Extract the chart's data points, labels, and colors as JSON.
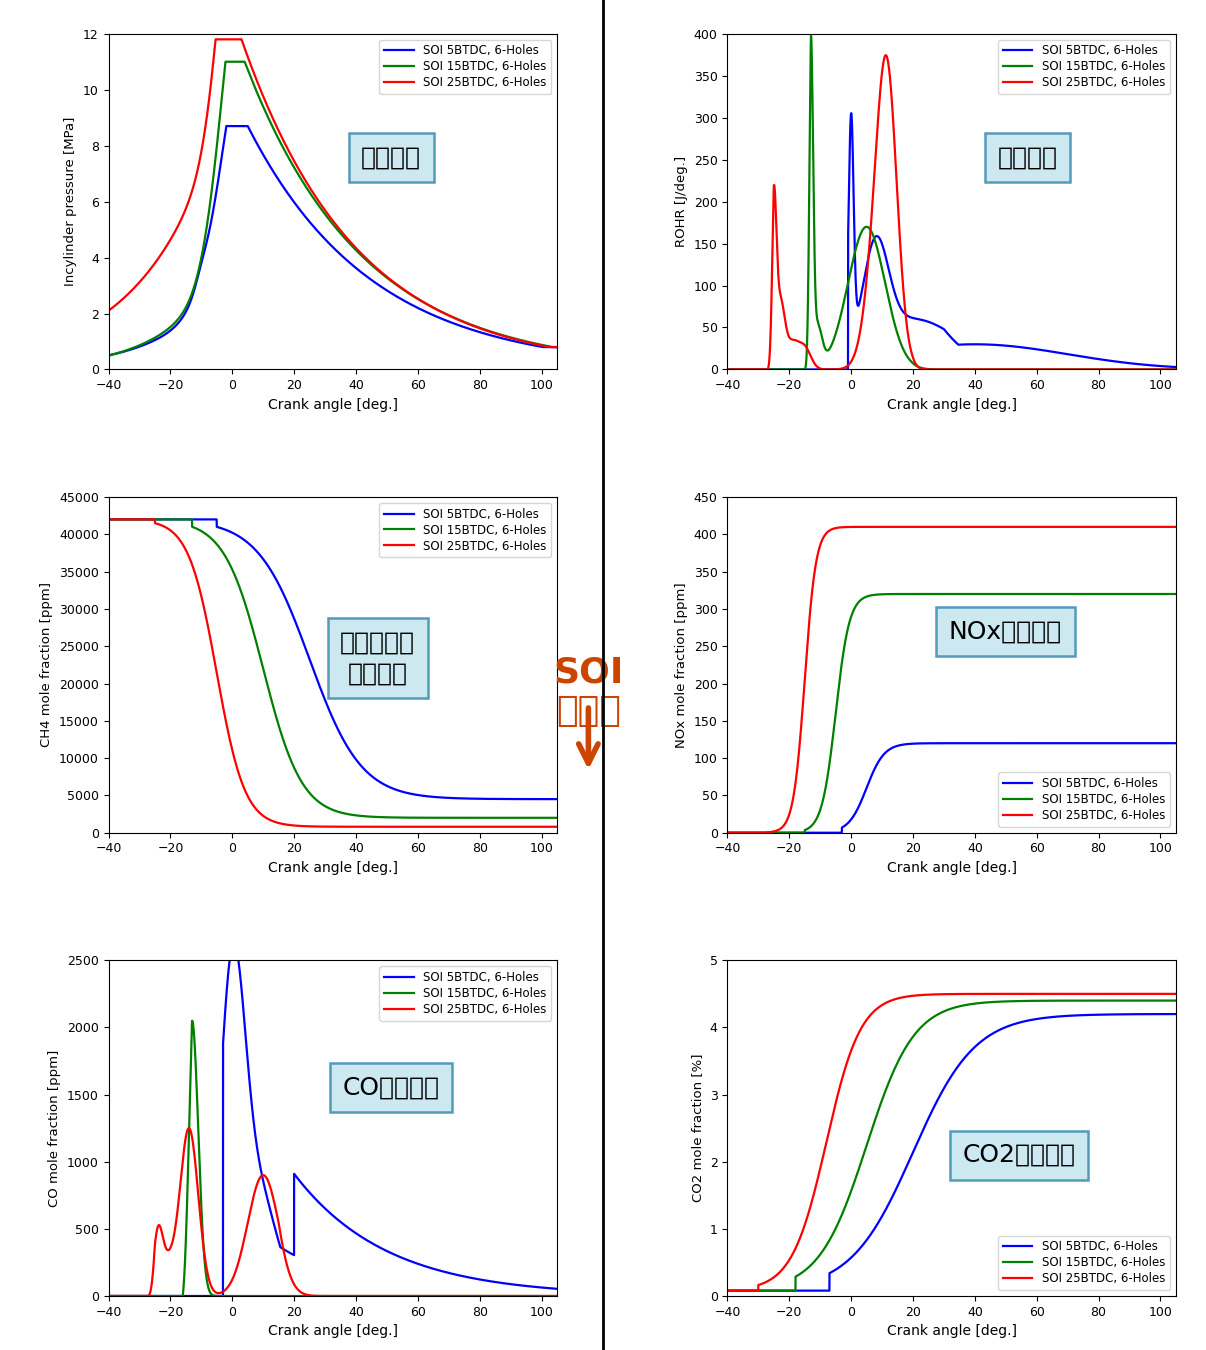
{
  "colors": [
    "#0000FF",
    "#008000",
    "#FF0000"
  ],
  "legend_labels": [
    "SOI 5BTDC, 6-Holes",
    "SOI 15BTDC, 6-Holes",
    "SOI 25BTDC, 6-Holes"
  ],
  "box_color": "#cce8f0",
  "box_edge_color": "#5599bb",
  "annotation_color": "#CC4400",
  "divider_color": "#000000",
  "subplot_labels": [
    "筒内圧力",
    "熱発生率",
    "未燃メタン\nモル分率",
    "NOxモル分率",
    "COモル分率",
    "CO2モル分率"
  ],
  "soi_annotation": "SOI\n遅角化"
}
